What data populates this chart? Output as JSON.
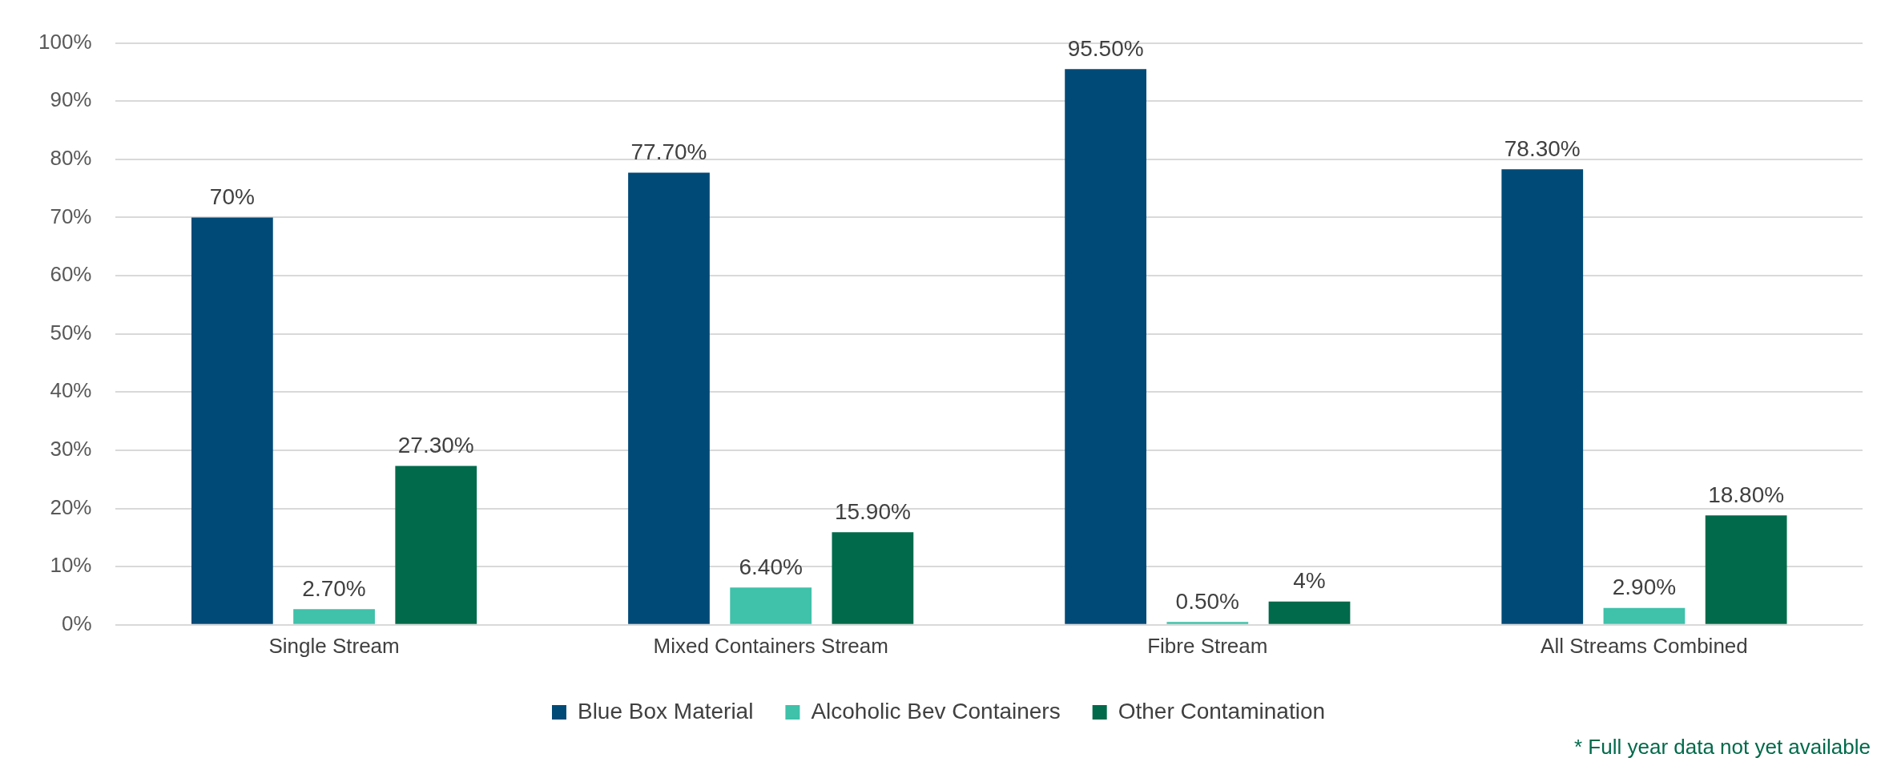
{
  "chart_data": {
    "type": "bar",
    "categories": [
      "Single Stream",
      "Mixed Containers Stream",
      "Fibre Stream",
      "All Streams Combined"
    ],
    "series": [
      {
        "name": "Blue Box Material",
        "color": "#004a78",
        "values": [
          70,
          77.7,
          95.5,
          78.3
        ],
        "value_labels": [
          "70%",
          "77.70%",
          "95.50%",
          "78.30%"
        ]
      },
      {
        "name": "Alcoholic Bev Containers",
        "color": "#3fc1aa",
        "values": [
          2.7,
          6.4,
          0.5,
          2.9
        ],
        "value_labels": [
          "2.70%",
          "6.40%",
          "0.50%",
          "2.90%"
        ]
      },
      {
        "name": "Other Contamination",
        "color": "#006a4a",
        "values": [
          27.3,
          15.9,
          4,
          18.8
        ],
        "value_labels": [
          "27.30%",
          "15.90%",
          "4%",
          "18.80%"
        ]
      }
    ],
    "ylim": [
      0,
      100
    ],
    "yticks": [
      {
        "value": 0,
        "label": "0%"
      },
      {
        "value": 10,
        "label": "10%"
      },
      {
        "value": 20,
        "label": "20%"
      },
      {
        "value": 30,
        "label": "30%"
      },
      {
        "value": 40,
        "label": "40%"
      },
      {
        "value": 50,
        "label": "50%"
      },
      {
        "value": 60,
        "label": "60%"
      },
      {
        "value": 70,
        "label": "70%"
      },
      {
        "value": 80,
        "label": "80%"
      },
      {
        "value": 90,
        "label": "90%"
      },
      {
        "value": 100,
        "label": "100%"
      }
    ],
    "grid": "y",
    "legend": "bottom",
    "annotations": [
      "* Full year data not yet available"
    ]
  }
}
